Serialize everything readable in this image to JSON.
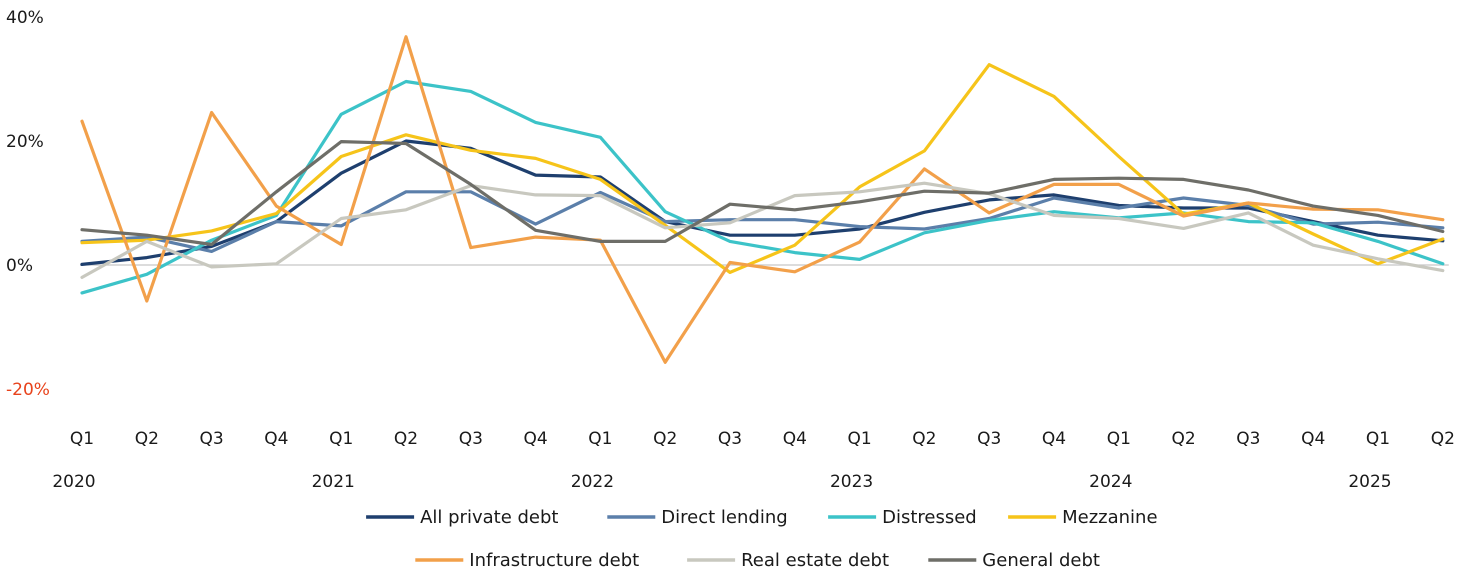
{
  "chart_data": {
    "type": "line",
    "title": "",
    "xlabel": "",
    "ylabel": "",
    "ylim": [
      -20,
      40
    ],
    "yticks": [
      {
        "value": 40,
        "label": "40%"
      },
      {
        "value": 20,
        "label": "20%"
      },
      {
        "value": 0,
        "label": "0%"
      },
      {
        "value": -20,
        "label": "-20%"
      }
    ],
    "negative_tick_color": "#e8431c",
    "categories": [
      "Q1",
      "Q2",
      "Q3",
      "Q4",
      "Q1",
      "Q2",
      "Q3",
      "Q4",
      "Q1",
      "Q2",
      "Q3",
      "Q4",
      "Q1",
      "Q2",
      "Q3",
      "Q4",
      "Q1",
      "Q2",
      "Q3",
      "Q4",
      "Q1",
      "Q2"
    ],
    "years": [
      {
        "label": "2020",
        "index": 0
      },
      {
        "label": "2021",
        "index": 4
      },
      {
        "label": "2022",
        "index": 8
      },
      {
        "label": "2023",
        "index": 12
      },
      {
        "label": "2024",
        "index": 16
      },
      {
        "label": "2025",
        "index": 20
      }
    ],
    "zero_line": true,
    "grid": false,
    "legend_position": "bottom",
    "series": [
      {
        "name": "All private debt",
        "color": "#1e3f6e",
        "values": [
          0.1,
          1.2,
          3.0,
          7.0,
          14.8,
          20.0,
          18.8,
          14.5,
          14.2,
          7.0,
          4.8,
          4.8,
          5.8,
          8.5,
          10.5,
          11.3,
          9.6,
          9.2,
          9.2,
          7.0,
          4.8,
          3.9
        ]
      },
      {
        "name": "Direct lending",
        "color": "#5b7faa",
        "values": [
          3.8,
          4.5,
          2.2,
          7.0,
          6.3,
          11.8,
          11.8,
          6.6,
          11.7,
          7.0,
          7.3,
          7.3,
          6.2,
          5.8,
          7.5,
          10.8,
          9.2,
          10.8,
          9.6,
          6.6,
          6.9,
          6.0
        ]
      },
      {
        "name": "Distressed",
        "color": "#3cc3c8",
        "values": [
          -4.5,
          -1.5,
          4.0,
          8.0,
          24.3,
          29.6,
          28.0,
          23.0,
          20.6,
          8.6,
          3.8,
          2.0,
          0.9,
          5.2,
          7.2,
          8.6,
          7.6,
          8.4,
          7.0,
          6.8,
          3.8,
          0.2
        ]
      },
      {
        "name": "Mezzanine",
        "color": "#f6c41a",
        "values": [
          3.6,
          4.0,
          5.5,
          8.3,
          17.5,
          21.0,
          18.5,
          17.2,
          13.8,
          6.4,
          -1.2,
          3.2,
          12.6,
          18.4,
          32.3,
          27.2,
          17.5,
          8.2,
          10.0,
          5.0,
          0.2,
          4.2
        ]
      },
      {
        "name": "Infrastructure debt",
        "color": "#f2a04a",
        "values": [
          23.2,
          -5.8,
          24.6,
          9.5,
          3.3,
          36.8,
          2.8,
          4.5,
          4.0,
          -15.7,
          0.4,
          -1.1,
          3.7,
          15.5,
          8.4,
          13.0,
          13.0,
          7.9,
          10.0,
          9.0,
          8.9,
          7.3
        ]
      },
      {
        "name": "Real estate debt",
        "color": "#c8c8bf",
        "values": [
          -2.0,
          3.8,
          -0.3,
          0.2,
          7.5,
          8.9,
          12.8,
          11.3,
          11.2,
          6.0,
          6.8,
          11.2,
          11.8,
          13.2,
          11.5,
          8.0,
          7.5,
          5.9,
          8.4,
          3.2,
          1.0,
          -0.9
        ]
      },
      {
        "name": "General debt",
        "color": "#6e6e68",
        "values": [
          5.7,
          4.8,
          3.3,
          11.8,
          19.9,
          19.6,
          13.0,
          5.6,
          3.8,
          3.8,
          9.8,
          8.9,
          10.2,
          11.9,
          11.6,
          13.8,
          14.0,
          13.8,
          12.1,
          9.5,
          8.0,
          5.4
        ]
      }
    ]
  }
}
